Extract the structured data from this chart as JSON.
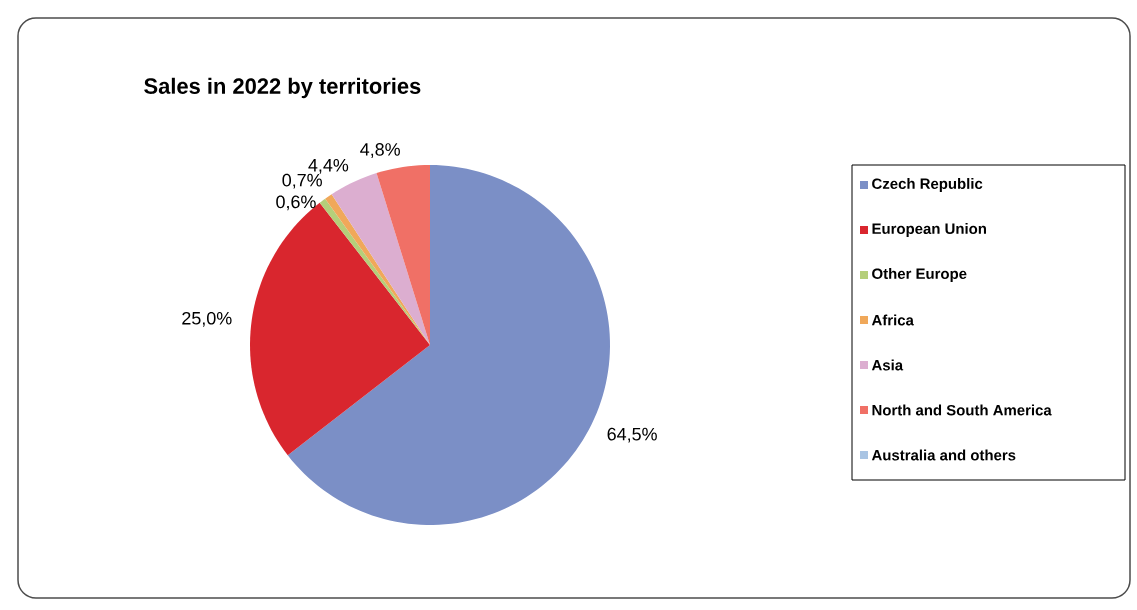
{
  "chart_data": {
    "type": "pie",
    "title": "Sales in 2022 by territories",
    "categories": [
      "Czech Republic",
      "European Union",
      "Other Europe",
      "Africa",
      "Asia",
      "North and South America",
      "Australia and others"
    ],
    "values": [
      64.5,
      25.0,
      0.6,
      0.7,
      4.4,
      4.8,
      0
    ],
    "value_labels": [
      "64,5%",
      "25,0%",
      "0,6%",
      "0,7%",
      "4,4%",
      "4,8%",
      null
    ],
    "colors": [
      "#7b8fc6",
      "#d9262e",
      "#b5cf7a",
      "#f0a85a",
      "#dcaed0",
      "#f07066",
      "#a9c4e3"
    ],
    "legend": "right"
  }
}
